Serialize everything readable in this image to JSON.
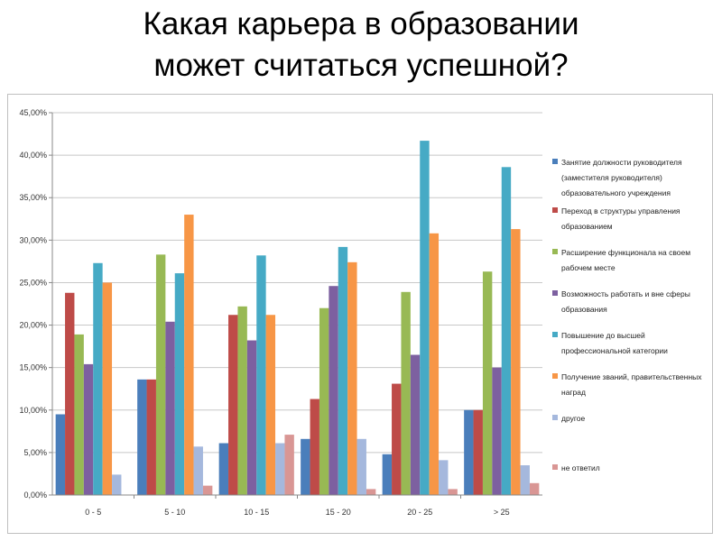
{
  "title_lines": [
    "Какая карьера в образовании",
    "может считаться успешной?"
  ],
  "chart_data": {
    "type": "bar",
    "categories": [
      "0 - 5",
      "5 - 10",
      "10 - 15",
      "15 - 20",
      "20 - 25",
      "> 25"
    ],
    "ylim": [
      0,
      45
    ],
    "y_ticks": [
      "0,00%",
      "5,00%",
      "10,00%",
      "15,00%",
      "20,00%",
      "25,00%",
      "30,00%",
      "35,00%",
      "40,00%",
      "45,00%"
    ],
    "grid": true,
    "legend_position": "right",
    "series": [
      {
        "name": "Занятие должности руководителя (заместителя руководителя) образовательного учреждения",
        "legend_lines": [
          "Занятие должности руководителя",
          "(заместителя руководителя)",
          "образовательного учреждения"
        ],
        "color": "#4a7ebb",
        "values": [
          9.5,
          13.6,
          6.1,
          6.6,
          4.8,
          10.0
        ]
      },
      {
        "name": "Переход в структуры управления образованием",
        "legend_lines": [
          "Переход в структуры управления",
          "образованием"
        ],
        "color": "#be4b48",
        "values": [
          23.8,
          13.6,
          21.2,
          11.3,
          13.1,
          10.0
        ]
      },
      {
        "name": "Расширение функционала на своем рабочем месте",
        "legend_lines": [
          "Расширение функционала на своем",
          "рабочем месте"
        ],
        "color": "#98b954",
        "values": [
          18.9,
          28.3,
          22.2,
          22.0,
          23.9,
          26.3
        ]
      },
      {
        "name": "Возможность работать и вне сферы образования",
        "legend_lines": [
          "Возможность работать и вне сферы",
          "образования"
        ],
        "color": "#7d60a0",
        "values": [
          15.4,
          20.4,
          18.2,
          24.6,
          16.5,
          15.0
        ]
      },
      {
        "name": "Повышение до высшей профессиональной категории",
        "legend_lines": [
          "Повышение до высшей",
          "профессиональной категории"
        ],
        "color": "#46aac5",
        "values": [
          27.3,
          26.1,
          28.2,
          29.2,
          41.7,
          38.6
        ]
      },
      {
        "name": "Получение званий, правительственных наград",
        "legend_lines": [
          "Получение званий, правительственных",
          "наград"
        ],
        "color": "#f79646",
        "values": [
          25.0,
          33.0,
          21.2,
          27.4,
          30.8,
          31.3
        ]
      },
      {
        "name": "другое",
        "legend_lines": [
          "другое"
        ],
        "color": "#a5b8dd",
        "values": [
          2.4,
          5.7,
          6.1,
          6.6,
          4.1,
          3.5
        ]
      },
      {
        "name": "не ответил",
        "legend_lines": [
          "не ответил"
        ],
        "color": "#d99694",
        "values": [
          0.0,
          1.1,
          7.1,
          0.7,
          0.7,
          1.4
        ]
      }
    ]
  }
}
